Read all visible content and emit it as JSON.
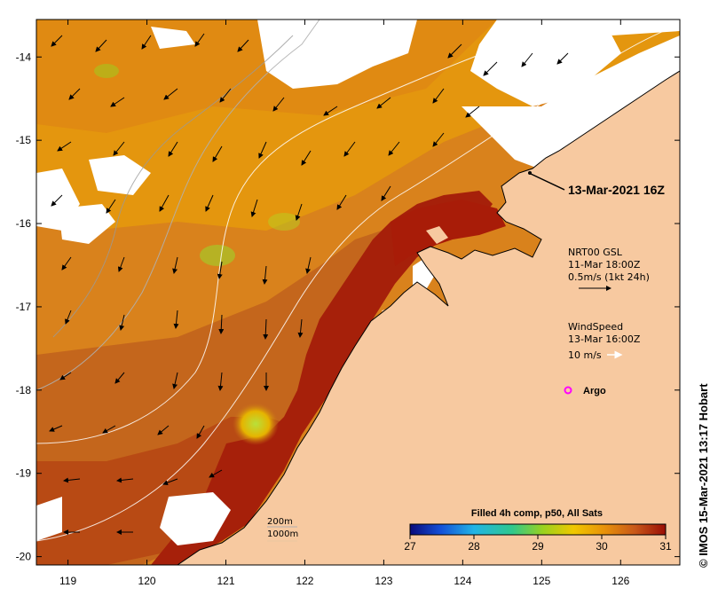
{
  "map": {
    "x_ticks": [
      "119",
      "120",
      "121",
      "122",
      "123",
      "124",
      "125",
      "126"
    ],
    "y_ticks": [
      "-14",
      "-15",
      "-16",
      "-17",
      "-18",
      "-19",
      "-20"
    ],
    "lon_range": [
      118.6,
      126.75
    ],
    "lat_range": [
      -20.1,
      -13.55
    ]
  },
  "annotations": {
    "date_label": "13-Mar-2021 16Z",
    "current_title": "NRT00 GSL",
    "current_time": "11-Mar 18:00Z",
    "current_scale": "0.5m/s (1kt 24h)",
    "wind_title": "WindSpeed",
    "wind_time": "13-Mar 16:00Z",
    "wind_scale": "10 m/s",
    "argo_label": "Argo",
    "contour_200": "200m",
    "contour_1000": "1000m",
    "credit": "© IMOS 15-Mar-2021 13:17 Hobart"
  },
  "colorbar": {
    "title": "Filled 4h comp, p50, All Sats",
    "ticks": [
      "27",
      "28",
      "29",
      "30",
      "31"
    ],
    "min": 27,
    "max": 31
  },
  "colors": {
    "land": "#f7c9a0",
    "sst_warm": "#c8641a",
    "sst_hot": "#a81c08",
    "argo": "#ff00ff"
  }
}
